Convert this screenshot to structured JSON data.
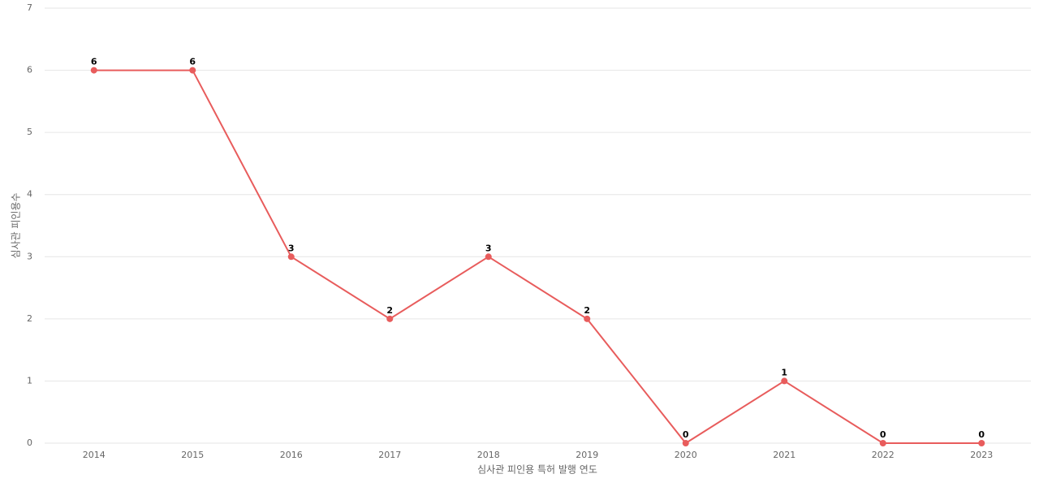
{
  "chart_data": {
    "type": "line",
    "x_label": "심사관 피인용 특허 발행 연도",
    "y_label": "심사관 피인용수",
    "categories": [
      "2014",
      "2015",
      "2016",
      "2017",
      "2018",
      "2019",
      "2020",
      "2021",
      "2022",
      "2023"
    ],
    "values": [
      6,
      6,
      3,
      2,
      3,
      2,
      0,
      1,
      0,
      0
    ],
    "color": "#e85c5c",
    "ylim": [
      0,
      7
    ],
    "yticks": [
      0,
      1,
      2,
      3,
      4,
      5,
      6,
      7
    ],
    "grid": true
  }
}
